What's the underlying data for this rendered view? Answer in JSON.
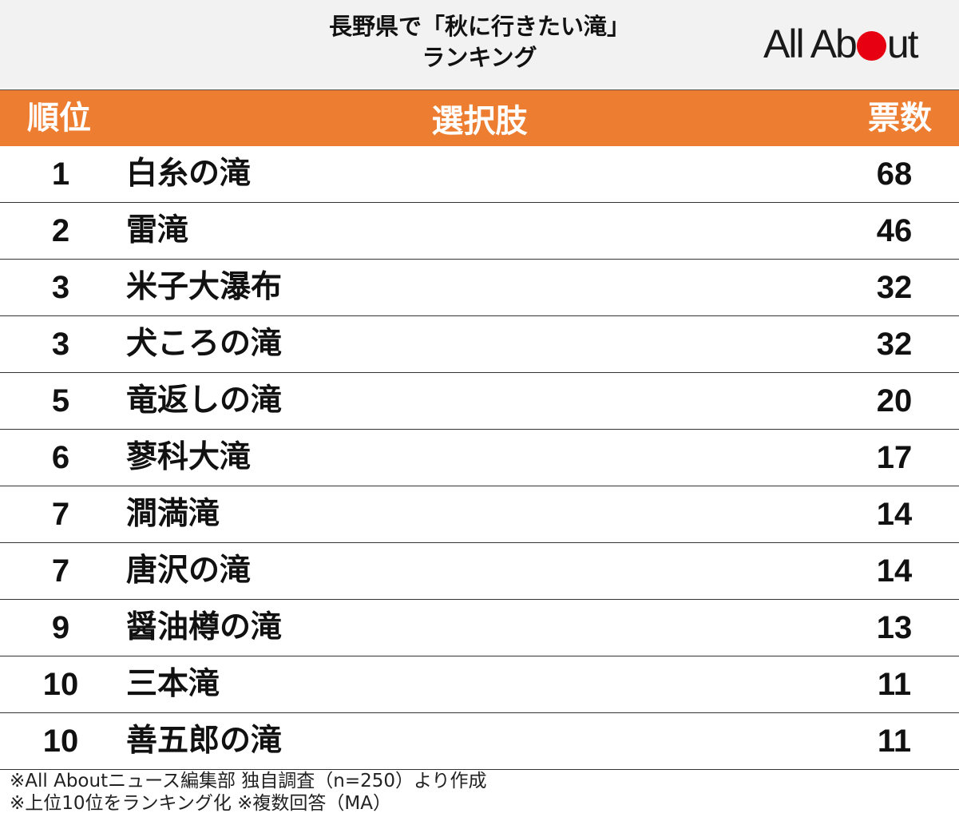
{
  "title": {
    "line1": "長野県で「秋に行きたい滝」",
    "line2": "ランキング"
  },
  "logo": {
    "text_before": "All Ab",
    "text_after": "ut",
    "dot_color": "#e60012"
  },
  "colors": {
    "header_bg": "#ed7d31",
    "title_bg": "#f2f2f2"
  },
  "columns": {
    "rank": "順位",
    "choice": "選択肢",
    "votes": "票数"
  },
  "chart_data": {
    "type": "table",
    "title": "長野県で「秋に行きたい滝」ランキング",
    "columns": [
      "順位",
      "選択肢",
      "票数"
    ],
    "rows": [
      {
        "rank": "1",
        "name": "白糸の滝",
        "votes": "68"
      },
      {
        "rank": "2",
        "name": "雷滝",
        "votes": "46"
      },
      {
        "rank": "3",
        "name": "米子大瀑布",
        "votes": "32"
      },
      {
        "rank": "3",
        "name": "犬ころの滝",
        "votes": "32"
      },
      {
        "rank": "5",
        "name": "竜返しの滝",
        "votes": "20"
      },
      {
        "rank": "6",
        "name": "蓼科大滝",
        "votes": "17"
      },
      {
        "rank": "7",
        "name": "澗満滝",
        "votes": "14"
      },
      {
        "rank": "7",
        "name": "唐沢の滝",
        "votes": "14"
      },
      {
        "rank": "9",
        "name": "醤油樽の滝",
        "votes": "13"
      },
      {
        "rank": "10",
        "name": "三本滝",
        "votes": "11"
      },
      {
        "rank": "10",
        "name": "善五郎の滝",
        "votes": "11"
      }
    ]
  },
  "footer": {
    "line1": "※All Aboutニュース編集部 独自調査（n=250）より作成",
    "line2": "※上位10位をランキング化 ※複数回答（MA）"
  }
}
